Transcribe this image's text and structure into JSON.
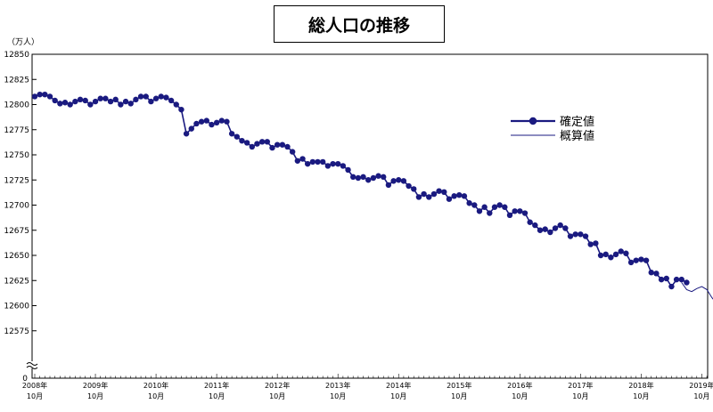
{
  "chart_data": {
    "type": "line",
    "title": "総人口の推移",
    "ylabel": "（万人）",
    "ylim": [
      12550,
      12850
    ],
    "yticks": [
      12575,
      12600,
      12625,
      12650,
      12675,
      12700,
      12725,
      12750,
      12775,
      12800,
      12825,
      12850
    ],
    "y_zero_label": "0",
    "x_tick_labels": [
      {
        "year": "2008年",
        "month": "10月"
      },
      {
        "year": "2009年",
        "month": "10月"
      },
      {
        "year": "2010年",
        "month": "10月"
      },
      {
        "year": "2011年",
        "month": "10月"
      },
      {
        "year": "2012年",
        "month": "10月"
      },
      {
        "year": "2013年",
        "month": "10月"
      },
      {
        "year": "2014年",
        "month": "10月"
      },
      {
        "year": "2015年",
        "month": "10月"
      },
      {
        "year": "2016年",
        "month": "10月"
      },
      {
        "year": "2017年",
        "month": "10月"
      },
      {
        "year": "2018年",
        "month": "10月"
      },
      {
        "year": "2019年",
        "month": "10月"
      }
    ],
    "series": [
      {
        "name": "確定値",
        "color": "#1a1a80",
        "marker": "circle",
        "start": "2008-10",
        "values": [
          12808,
          12810,
          12810,
          12808,
          12804,
          12801,
          12802,
          12800,
          12803,
          12805,
          12804,
          12800,
          12803,
          12806,
          12806,
          12803,
          12805,
          12800,
          12803,
          12801,
          12805,
          12808,
          12808,
          12803,
          12806,
          12808,
          12807,
          12804,
          12800,
          12795,
          12771,
          12776,
          12781,
          12783,
          12784,
          12780,
          12782,
          12784,
          12783,
          12771,
          12768,
          12764,
          12762,
          12758,
          12761,
          12763,
          12763,
          12757,
          12760,
          12760,
          12758,
          12753,
          12744,
          12746,
          12741,
          12743,
          12743,
          12743,
          12739,
          12741,
          12741,
          12739,
          12735,
          12728,
          12727,
          12728,
          12725,
          12727,
          12729,
          12728,
          12720,
          12724,
          12725,
          12724,
          12719,
          12716,
          12708,
          12711,
          12708,
          12711,
          12714,
          12713,
          12706,
          12709,
          12710,
          12709,
          12702,
          12700,
          12694,
          12698,
          12692,
          12698,
          12700,
          12698,
          12690,
          12694,
          12694,
          12692,
          12683,
          12680,
          12675,
          12676,
          12673,
          12677,
          12680,
          12677,
          12669,
          12671,
          12671,
          12669,
          12661,
          12662,
          12650,
          12651,
          12648,
          12651,
          12654,
          12652,
          12643,
          12645,
          12646,
          12645,
          12633,
          12632,
          12626,
          12627,
          12619,
          12626,
          12626,
          12623
        ]
      },
      {
        "name": "概算値",
        "color": "#1a1a80",
        "marker": "none",
        "start": "2019-06",
        "values": [
          12623,
          12616,
          12614,
          12617,
          12619,
          12616,
          12608,
          12602
        ]
      }
    ],
    "legend": {
      "position": "right-center",
      "entries": [
        "確定値",
        "概算値"
      ]
    },
    "grid": false
  }
}
